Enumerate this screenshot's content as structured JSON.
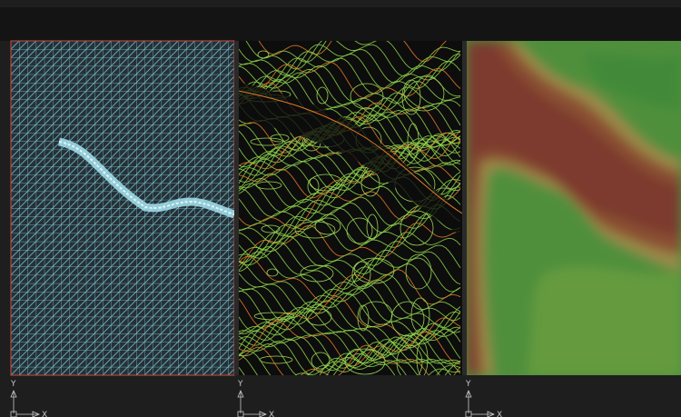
{
  "viewports": [
    {
      "ucs": {
        "y": "Y",
        "x": "X"
      }
    },
    {
      "ucs": {
        "y": "Y",
        "x": "X"
      }
    },
    {
      "ucs": {
        "y": "Y",
        "x": "X"
      }
    }
  ]
}
